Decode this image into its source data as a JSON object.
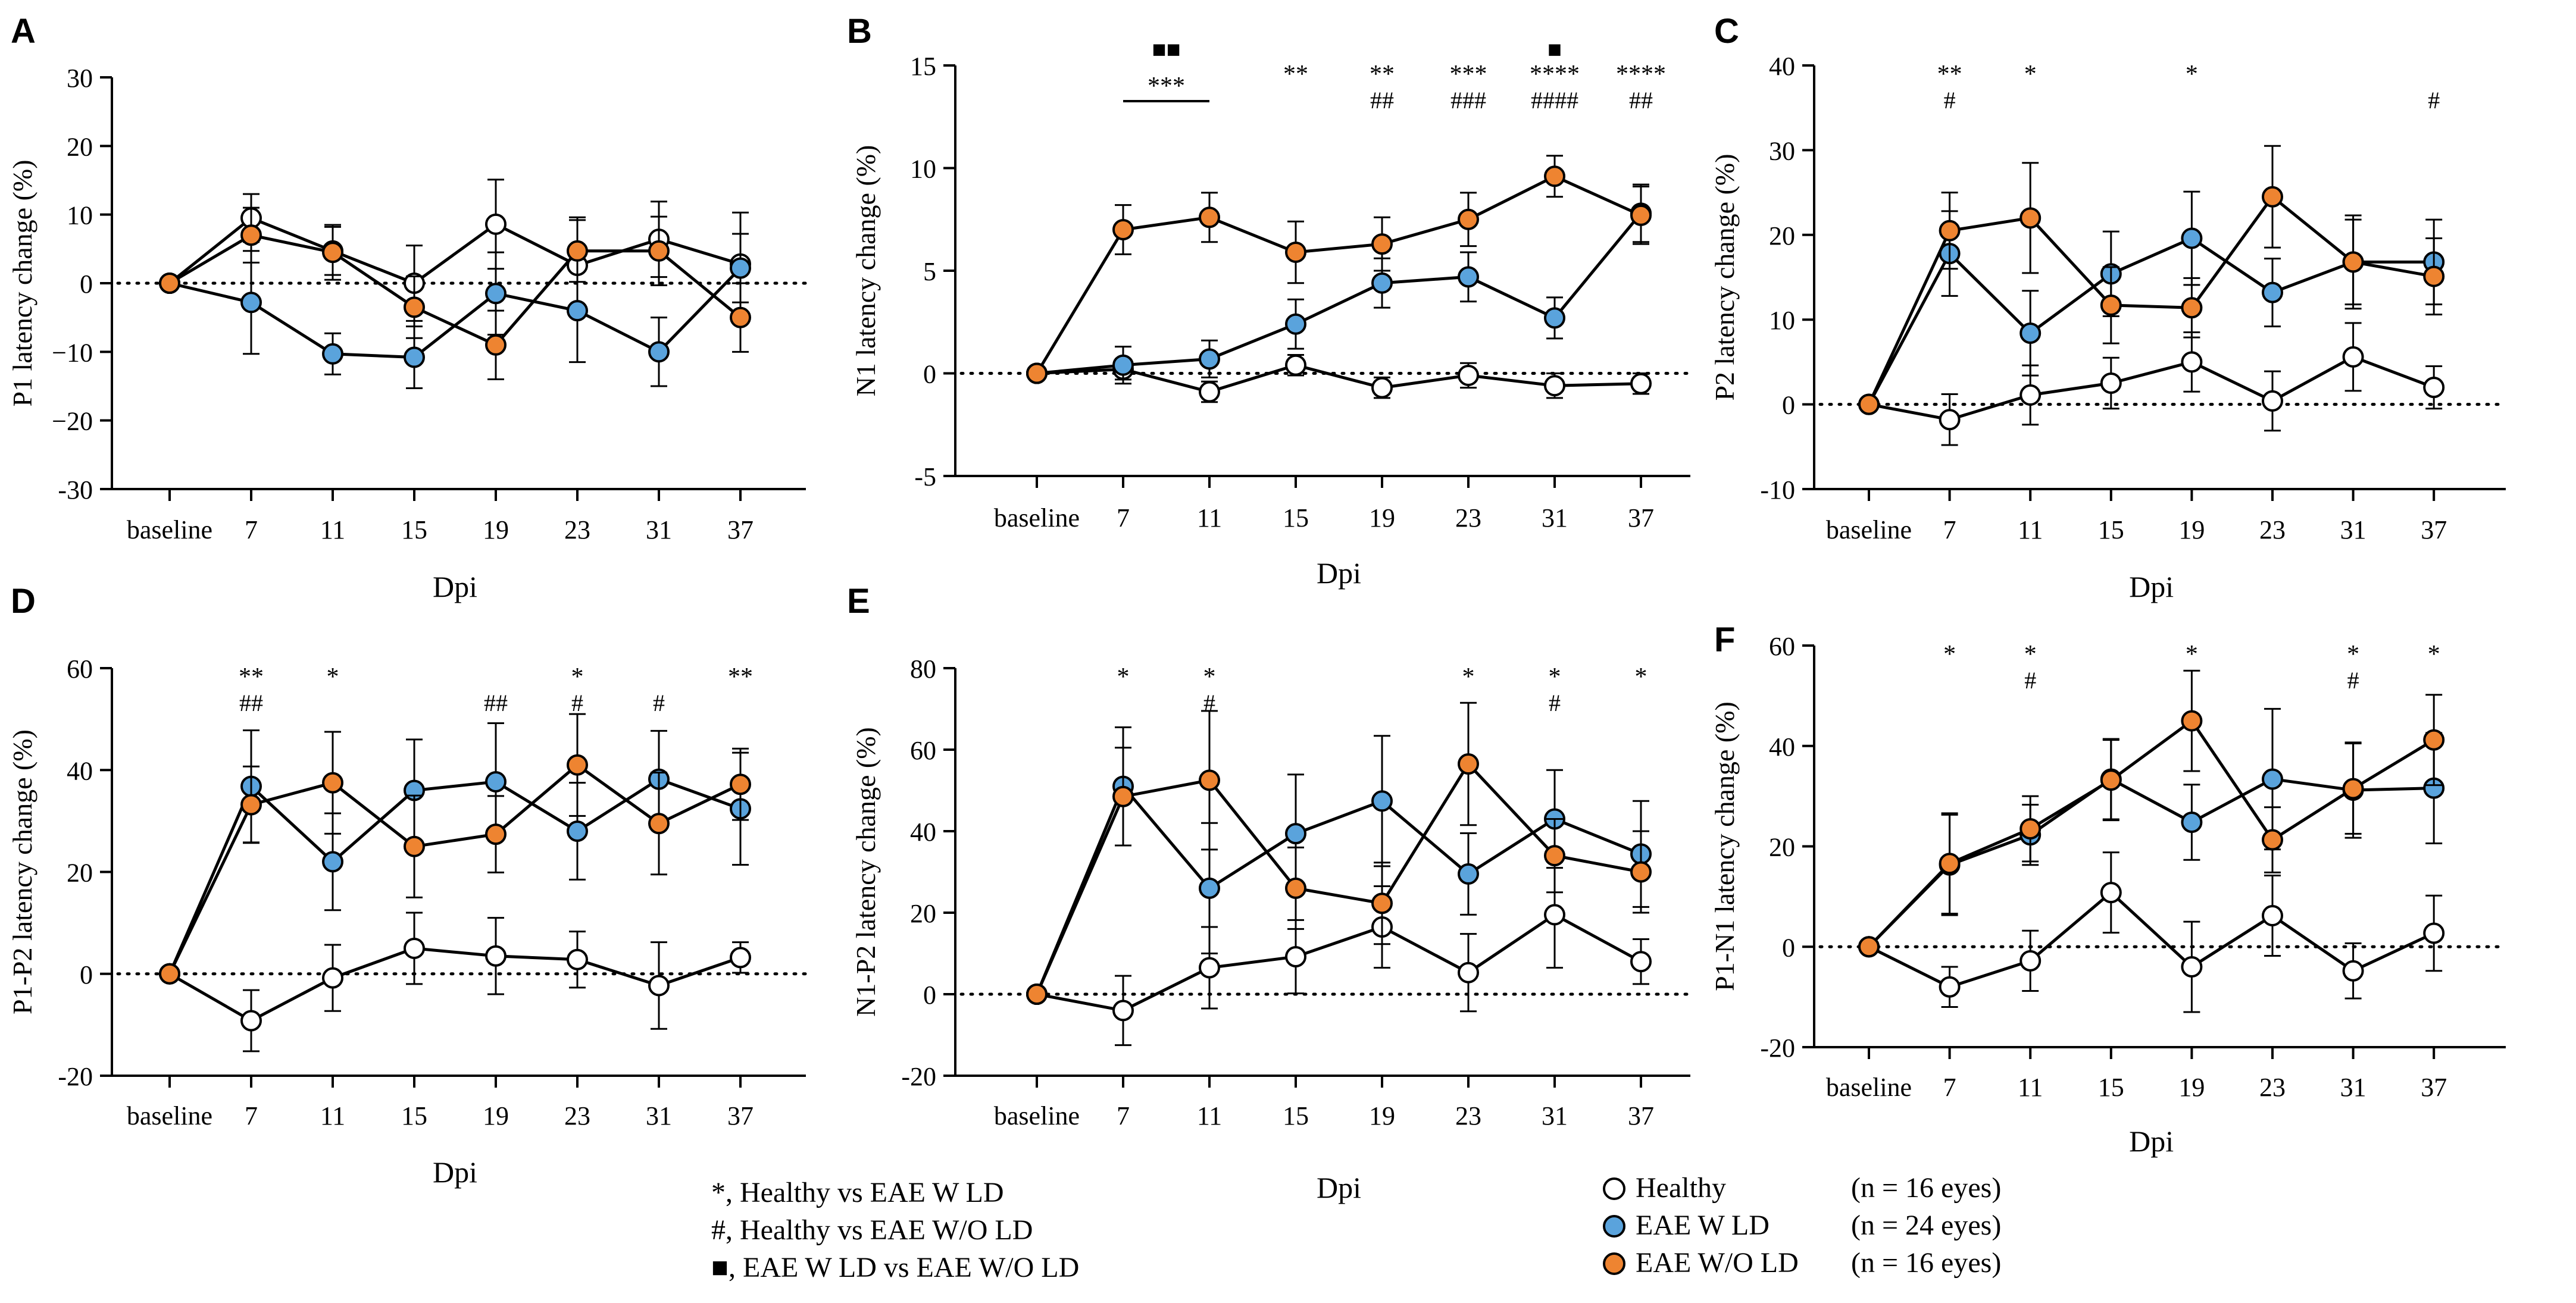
{
  "colors": {
    "healthy": "#ffffff",
    "eae_w_ld": "#5aa3dc",
    "eae_wo_ld": "#ee8431"
  },
  "chart_data": [
    {
      "type": "line",
      "panel": "A",
      "xlabel": "Dpi",
      "ylabel": "P1 latency change (%)",
      "categories": [
        "baseline",
        "7",
        "11",
        "15",
        "19",
        "23",
        "31",
        "37"
      ],
      "ylim": [
        -30,
        30
      ],
      "yticks": [
        30,
        20,
        10,
        0,
        -10,
        -20,
        -30
      ],
      "ytick_labels": [
        "30",
        "20",
        "10",
        "0",
        "−10",
        "−20",
        "-30"
      ],
      "series": [
        {
          "name": "Healthy",
          "values": [
            0,
            9.5,
            4.7,
            0,
            8.6,
            2.6,
            6.4,
            2.8
          ],
          "err": [
            0,
            3.5,
            3.5,
            5.5,
            6.5,
            7,
            5.5,
            7.5
          ]
        },
        {
          "name": "EAE W LD",
          "values": [
            0,
            -2.8,
            -10.3,
            -10.8,
            -1.5,
            -4,
            -10,
            2.2
          ],
          "err": [
            0,
            7.5,
            3,
            4.5,
            6,
            7.5,
            5,
            5
          ]
        },
        {
          "name": "EAE W/O LD",
          "values": [
            0,
            7,
            4.5,
            -3.5,
            -9,
            4.7,
            4.7,
            -5
          ],
          "err": [
            0,
            4,
            4,
            4.5,
            5,
            4.5,
            5,
            5
          ]
        }
      ],
      "annotations": []
    },
    {
      "type": "line",
      "panel": "B",
      "xlabel": "Dpi",
      "ylabel": "N1 latency change (%)",
      "categories": [
        "baseline",
        "7",
        "11",
        "15",
        "19",
        "23",
        "31",
        "37"
      ],
      "ylim": [
        -5,
        15
      ],
      "yticks": [
        15,
        10,
        5,
        0,
        -5
      ],
      "ytick_labels": [
        "15",
        "10",
        "5",
        "0",
        "-5"
      ],
      "series": [
        {
          "name": "Healthy",
          "values": [
            0,
            0.2,
            -0.9,
            0.4,
            -0.7,
            -0.1,
            -0.6,
            -0.5
          ],
          "err": [
            0,
            0.5,
            0.5,
            0.5,
            0.5,
            0.6,
            0.6,
            0.5
          ]
        },
        {
          "name": "EAE W LD",
          "values": [
            0,
            0.4,
            0.7,
            2.4,
            4.4,
            4.7,
            2.7,
            7.8
          ],
          "err": [
            0,
            0.9,
            0.9,
            1.2,
            1.2,
            1.2,
            1,
            1.4
          ]
        },
        {
          "name": "EAE W/O LD",
          "values": [
            0,
            7,
            7.6,
            5.9,
            6.3,
            7.5,
            9.6,
            7.7
          ],
          "err": [
            0,
            1.2,
            1.2,
            1.5,
            1.3,
            1.3,
            1,
            1.4
          ]
        }
      ],
      "annotations": [
        {
          "cat": 1,
          "stars": "***",
          "hash": "",
          "squares": "■■",
          "bracket_to": 2
        },
        {
          "cat": 3,
          "stars": "**",
          "hash": "",
          "squares": ""
        },
        {
          "cat": 4,
          "stars": "**",
          "hash": "##",
          "squares": ""
        },
        {
          "cat": 5,
          "stars": "***",
          "hash": "###",
          "squares": ""
        },
        {
          "cat": 6,
          "stars": "****",
          "hash": "####",
          "squares": "■"
        },
        {
          "cat": 7,
          "stars": "****",
          "hash": "##",
          "squares": ""
        }
      ]
    },
    {
      "type": "line",
      "panel": "C",
      "xlabel": "Dpi",
      "ylabel": "P2 latency change (%)",
      "categories": [
        "baseline",
        "7",
        "11",
        "15",
        "19",
        "23",
        "31",
        "37"
      ],
      "ylim": [
        -10,
        40
      ],
      "yticks": [
        40,
        30,
        20,
        10,
        0,
        -10
      ],
      "ytick_labels": [
        "40",
        "30",
        "20",
        "10",
        "0",
        "-10"
      ],
      "series": [
        {
          "name": "Healthy",
          "values": [
            0,
            -1.8,
            1.1,
            2.5,
            5,
            0.4,
            5.6,
            2
          ],
          "err": [
            0,
            3,
            3.5,
            3,
            3.5,
            3.5,
            4,
            2.5
          ]
        },
        {
          "name": "EAE W LD",
          "values": [
            0,
            17.8,
            8.4,
            15.4,
            19.6,
            13.2,
            16.8,
            16.8
          ],
          "err": [
            0,
            5,
            5,
            5,
            5.5,
            4,
            5,
            5
          ]
        },
        {
          "name": "EAE W/O LD",
          "values": [
            0,
            20.5,
            22,
            11.7,
            11.4,
            24.5,
            16.8,
            15.1
          ],
          "err": [
            0,
            4.5,
            6.5,
            4.5,
            3.5,
            6,
            5.5,
            4.5
          ]
        }
      ],
      "annotations": [
        {
          "cat": 1,
          "stars": "**",
          "hash": "#",
          "squares": ""
        },
        {
          "cat": 2,
          "stars": "*",
          "hash": "",
          "squares": ""
        },
        {
          "cat": 4,
          "stars": "*",
          "hash": "",
          "squares": ""
        },
        {
          "cat": 7,
          "stars": "",
          "hash": "#",
          "squares": ""
        }
      ]
    },
    {
      "type": "line",
      "panel": "D",
      "xlabel": "Dpi",
      "ylabel": "P1-P2 latency change (%)",
      "categories": [
        "baseline",
        "7",
        "11",
        "15",
        "19",
        "23",
        "31",
        "37"
      ],
      "ylim": [
        -20,
        60
      ],
      "yticks": [
        60,
        40,
        20,
        0,
        -20
      ],
      "ytick_labels": [
        "60",
        "40",
        "20",
        "0",
        "-20"
      ],
      "series": [
        {
          "name": "Healthy",
          "values": [
            0,
            -9.2,
            -0.8,
            5,
            3.5,
            2.8,
            -2.3,
            3.2
          ],
          "err": [
            0,
            6,
            6.5,
            7,
            7.5,
            5.5,
            8.5,
            3
          ]
        },
        {
          "name": "EAE W LD",
          "values": [
            0,
            36.8,
            22,
            36,
            37.7,
            28,
            38.2,
            32.4
          ],
          "err": [
            0,
            11,
            9.5,
            10,
            11.5,
            9.5,
            9.5,
            11
          ]
        },
        {
          "name": "EAE W/O LD",
          "values": [
            0,
            33.2,
            37.5,
            25,
            27.4,
            41,
            29.5,
            37.2
          ],
          "err": [
            0,
            7.5,
            10,
            10,
            7.5,
            10,
            10,
            7
          ]
        }
      ],
      "annotations": [
        {
          "cat": 1,
          "stars": "**",
          "hash": "##",
          "squares": ""
        },
        {
          "cat": 2,
          "stars": "*",
          "hash": "",
          "squares": ""
        },
        {
          "cat": 4,
          "stars": "",
          "hash": "##",
          "squares": ""
        },
        {
          "cat": 5,
          "stars": "*",
          "hash": "#",
          "squares": ""
        },
        {
          "cat": 6,
          "stars": "",
          "hash": "#",
          "squares": ""
        },
        {
          "cat": 7,
          "stars": "**",
          "hash": "",
          "squares": ""
        }
      ]
    },
    {
      "type": "line",
      "panel": "E",
      "xlabel": "Dpi",
      "ylabel": "N1-P2 latency change (%)",
      "categories": [
        "baseline",
        "7",
        "11",
        "15",
        "19",
        "23",
        "31",
        "37"
      ],
      "ylim": [
        -20,
        80
      ],
      "yticks": [
        80,
        60,
        40,
        20,
        0,
        -20
      ],
      "ytick_labels": [
        "80",
        "60",
        "40",
        "20",
        "0",
        "-20"
      ],
      "series": [
        {
          "name": "Healthy",
          "values": [
            0,
            -4,
            6.5,
            9.2,
            16.5,
            5.3,
            19.5,
            8
          ],
          "err": [
            0,
            8.5,
            10,
            9,
            10,
            9.5,
            13,
            5.5
          ]
        },
        {
          "name": "EAE W LD",
          "values": [
            0,
            51,
            26,
            39.4,
            47.4,
            29.5,
            43,
            34.4
          ],
          "err": [
            0,
            14.5,
            16,
            14.5,
            16,
            10,
            12,
            13
          ]
        },
        {
          "name": "EAE W/O LD",
          "values": [
            0,
            48.5,
            52.5,
            26,
            22.3,
            56.5,
            34,
            30
          ],
          "err": [
            0,
            12,
            17,
            10,
            10,
            15,
            9,
            10
          ]
        }
      ],
      "annotations": [
        {
          "cat": 1,
          "stars": "*",
          "hash": "",
          "squares": ""
        },
        {
          "cat": 2,
          "stars": "*",
          "hash": "#",
          "squares": ""
        },
        {
          "cat": 5,
          "stars": "*",
          "hash": "",
          "squares": ""
        },
        {
          "cat": 6,
          "stars": "*",
          "hash": "#",
          "squares": ""
        },
        {
          "cat": 7,
          "stars": "*",
          "hash": "",
          "squares": ""
        }
      ]
    },
    {
      "type": "line",
      "panel": "F",
      "xlabel": "Dpi",
      "ylabel": "P1-N1 latency change (%)",
      "categories": [
        "baseline",
        "7",
        "11",
        "15",
        "19",
        "23",
        "31",
        "37"
      ],
      "ylim": [
        -20,
        60
      ],
      "yticks": [
        60,
        40,
        20,
        0,
        -20
      ],
      "ytick_labels": [
        "60",
        "40",
        "20",
        "0",
        "-20"
      ],
      "series": [
        {
          "name": "Healthy",
          "values": [
            0,
            -8,
            -2.8,
            10.8,
            -4,
            6.2,
            -4.8,
            2.7
          ],
          "err": [
            0,
            4,
            6,
            8,
            9,
            8,
            5.5,
            7.5
          ]
        },
        {
          "name": "EAE W LD",
          "values": [
            0,
            16.3,
            22.3,
            33.4,
            24.8,
            33.4,
            31.2,
            31.6
          ],
          "err": [
            0,
            10,
            6,
            8,
            7.5,
            14,
            9.5,
            11
          ]
        },
        {
          "name": "EAE W/O LD",
          "values": [
            0,
            16.6,
            23.5,
            33.2,
            45,
            21.3,
            31.5,
            41.2
          ],
          "err": [
            0,
            10,
            6.5,
            8,
            10,
            6.5,
            9,
            9
          ]
        }
      ],
      "annotations": [
        {
          "cat": 1,
          "stars": "*",
          "hash": "",
          "squares": ""
        },
        {
          "cat": 2,
          "stars": "*",
          "hash": "#",
          "squares": ""
        },
        {
          "cat": 4,
          "stars": "*",
          "hash": "",
          "squares": ""
        },
        {
          "cat": 6,
          "stars": "*",
          "hash": "#",
          "squares": ""
        },
        {
          "cat": 7,
          "stars": "*",
          "hash": "",
          "squares": ""
        }
      ]
    }
  ],
  "significance_legend": [
    "*, Healthy vs EAE W LD",
    "#, Healthy vs EAE W/O LD",
    "■, EAE W LD vs EAE W/O LD"
  ],
  "group_legend": [
    {
      "name": "Healthy",
      "n": "(n = 16 eyes)"
    },
    {
      "name": "EAE W LD",
      "n": "(n = 24 eyes)"
    },
    {
      "name": "EAE W/O LD",
      "n": "(n = 16 eyes)"
    }
  ]
}
